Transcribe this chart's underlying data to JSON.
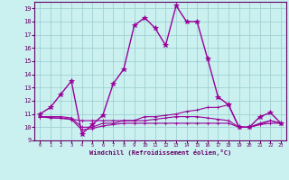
{
  "title": "",
  "xlabel": "Windchill (Refroidissement éolien,°C)",
  "bg_color": "#caf0f0",
  "line_color": "#990099",
  "grid_color": "#99cccc",
  "xlim": [
    -0.5,
    23.5
  ],
  "ylim": [
    9,
    19.5
  ],
  "yticks": [
    9,
    10,
    11,
    12,
    13,
    14,
    15,
    16,
    17,
    18,
    19
  ],
  "xticks": [
    0,
    1,
    2,
    3,
    4,
    5,
    6,
    7,
    8,
    9,
    10,
    11,
    12,
    13,
    14,
    15,
    16,
    17,
    18,
    19,
    20,
    21,
    22,
    23
  ],
  "series": [
    {
      "x": [
        0,
        1,
        2,
        3,
        4,
        5,
        6,
        7,
        8,
        9,
        10,
        11,
        12,
        13,
        14,
        15,
        16,
        17,
        18,
        19,
        20,
        21,
        22,
        23
      ],
      "y": [
        11.0,
        11.5,
        12.5,
        13.5,
        9.5,
        10.2,
        10.9,
        13.3,
        14.4,
        17.7,
        18.3,
        17.5,
        16.2,
        19.2,
        18.0,
        18.0,
        15.2,
        12.3,
        11.7,
        10.0,
        10.0,
        10.8,
        11.1,
        10.3
      ],
      "marker": "*",
      "lw": 1.0,
      "ms": 4
    },
    {
      "x": [
        0,
        1,
        2,
        3,
        4,
        5,
        6,
        7,
        8,
        9,
        10,
        11,
        12,
        13,
        14,
        15,
        16,
        17,
        18,
        19,
        20,
        21,
        22,
        23
      ],
      "y": [
        10.8,
        10.7,
        10.7,
        10.6,
        10.5,
        10.5,
        10.5,
        10.5,
        10.5,
        10.5,
        10.5,
        10.6,
        10.7,
        10.8,
        10.8,
        10.8,
        10.7,
        10.6,
        10.5,
        10.0,
        10.0,
        10.3,
        10.5,
        10.3
      ],
      "marker": "+",
      "lw": 0.8,
      "ms": 3
    },
    {
      "x": [
        0,
        1,
        2,
        3,
        4,
        5,
        6,
        7,
        8,
        9,
        10,
        11,
        12,
        13,
        14,
        15,
        16,
        17,
        18,
        19,
        20,
        21,
        22,
        23
      ],
      "y": [
        10.8,
        10.8,
        10.8,
        10.7,
        10.0,
        10.0,
        10.3,
        10.3,
        10.5,
        10.5,
        10.8,
        10.8,
        10.9,
        11.0,
        11.2,
        11.3,
        11.5,
        11.5,
        11.7,
        10.0,
        10.0,
        10.2,
        10.5,
        10.3
      ],
      "marker": "+",
      "lw": 0.8,
      "ms": 3
    },
    {
      "x": [
        0,
        3,
        4,
        5,
        6,
        7,
        8,
        9,
        10,
        11,
        12,
        13,
        14,
        15,
        16,
        17,
        18,
        19,
        20,
        21,
        22,
        23
      ],
      "y": [
        10.8,
        10.6,
        9.8,
        9.9,
        10.1,
        10.2,
        10.3,
        10.3,
        10.3,
        10.3,
        10.3,
        10.3,
        10.3,
        10.3,
        10.3,
        10.3,
        10.3,
        10.0,
        10.0,
        10.2,
        10.3,
        10.3
      ],
      "marker": "+",
      "lw": 0.8,
      "ms": 3
    }
  ]
}
